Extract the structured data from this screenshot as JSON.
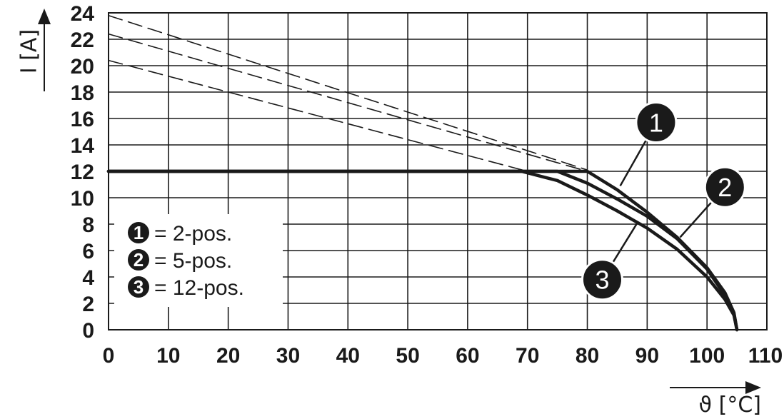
{
  "chart_data": {
    "type": "line",
    "xlabel": "ϑ [°C]",
    "ylabel": "I [A]",
    "xlim": [
      0,
      110
    ],
    "ylim": [
      0,
      24
    ],
    "x_ticks": [
      "0",
      "10",
      "20",
      "30",
      "40",
      "50",
      "60",
      "70",
      "80",
      "90",
      "100",
      "110"
    ],
    "y_ticks": [
      "0",
      "2",
      "4",
      "6",
      "8",
      "10",
      "12",
      "14",
      "16",
      "18",
      "20",
      "22",
      "24"
    ],
    "grid": true,
    "legend_position": "lower-left",
    "legend": [
      {
        "badge": "1",
        "text": "= 2-pos."
      },
      {
        "badge": "2",
        "text": "= 5-pos."
      },
      {
        "badge": "3",
        "text": "= 12-pos."
      }
    ],
    "series": [
      {
        "name": "1",
        "style": "solid",
        "x": [
          0,
          80,
          85,
          90,
          95,
          100,
          103,
          104.5,
          105
        ],
        "y": [
          12,
          12,
          10.6,
          8.9,
          7.0,
          4.7,
          2.8,
          1.3,
          0
        ]
      },
      {
        "name": "2",
        "style": "solid",
        "x": [
          0,
          75,
          80,
          85,
          90,
          95,
          100,
          103,
          104.5,
          105
        ],
        "y": [
          12,
          12,
          11.1,
          9.9,
          8.6,
          6.9,
          4.6,
          2.6,
          1.2,
          0
        ]
      },
      {
        "name": "3",
        "style": "solid",
        "x": [
          0,
          69,
          75,
          80,
          85,
          90,
          95,
          100,
          103,
          104.5,
          105
        ],
        "y": [
          12,
          12,
          11.3,
          10.2,
          9.0,
          7.7,
          6.1,
          4.0,
          2.3,
          1.1,
          0
        ]
      },
      {
        "style": "dashed",
        "x": [
          0,
          80
        ],
        "y": [
          23.8,
          12.1
        ]
      },
      {
        "style": "dashed",
        "x": [
          0,
          80
        ],
        "y": [
          22.4,
          12.0
        ]
      },
      {
        "style": "dashed",
        "x": [
          0,
          70
        ],
        "y": [
          20.4,
          12.0
        ]
      }
    ],
    "callouts": [
      {
        "label": "1",
        "circle_at": [
          91.5,
          15.7
        ],
        "line_to": [
          85.5,
          10.9
        ]
      },
      {
        "label": "2",
        "circle_at": [
          103,
          10.8
        ],
        "line_to": [
          95.5,
          7.0
        ]
      },
      {
        "label": "3",
        "circle_at": [
          82.5,
          3.8
        ],
        "line_to": [
          88.5,
          8.2
        ]
      }
    ],
    "colors": {
      "ink": "#1a1a1a",
      "background": "#ffffff"
    }
  }
}
